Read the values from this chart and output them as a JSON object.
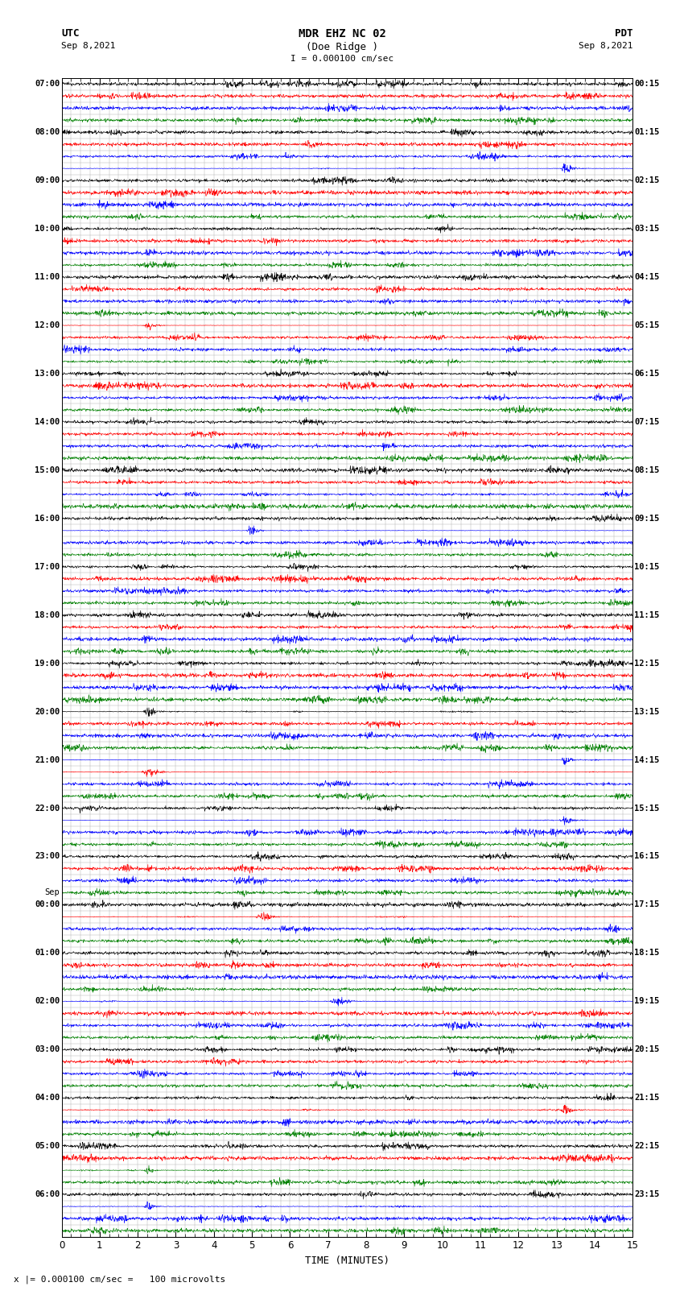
{
  "title_line1": "MDR EHZ NC 02",
  "title_line2": "(Doe Ridge )",
  "scale_label": "I = 0.000100 cm/sec",
  "utc_label": "UTC",
  "utc_date": "Sep 8,2021",
  "pdt_label": "PDT",
  "pdt_date": "Sep 8,2021",
  "bottom_label": "x |= 0.000100 cm/sec =   100 microvolts",
  "xlabel": "TIME (MINUTES)",
  "colors": [
    "black",
    "red",
    "blue",
    "green"
  ],
  "n_rows": 96,
  "n_samples": 1800,
  "x_min": 0,
  "x_max": 15,
  "bg_color": "#ffffff",
  "grid_color": "#aaaaaa",
  "figsize": [
    8.5,
    16.13
  ],
  "dpi": 100,
  "left_labels": [
    [
      0,
      "07:00"
    ],
    [
      4,
      "08:00"
    ],
    [
      8,
      "09:00"
    ],
    [
      12,
      "10:00"
    ],
    [
      16,
      "11:00"
    ],
    [
      20,
      "12:00"
    ],
    [
      24,
      "13:00"
    ],
    [
      28,
      "14:00"
    ],
    [
      32,
      "15:00"
    ],
    [
      36,
      "16:00"
    ],
    [
      40,
      "17:00"
    ],
    [
      44,
      "18:00"
    ],
    [
      48,
      "19:00"
    ],
    [
      52,
      "20:00"
    ],
    [
      56,
      "21:00"
    ],
    [
      60,
      "22:00"
    ],
    [
      64,
      "23:00"
    ],
    [
      67,
      "Sep"
    ],
    [
      68,
      "00:00"
    ],
    [
      72,
      "01:00"
    ],
    [
      76,
      "02:00"
    ],
    [
      80,
      "03:00"
    ],
    [
      84,
      "04:00"
    ],
    [
      88,
      "05:00"
    ],
    [
      92,
      "06:00"
    ]
  ],
  "right_labels": [
    [
      0,
      "00:15"
    ],
    [
      4,
      "01:15"
    ],
    [
      8,
      "02:15"
    ],
    [
      12,
      "03:15"
    ],
    [
      16,
      "04:15"
    ],
    [
      20,
      "05:15"
    ],
    [
      24,
      "06:15"
    ],
    [
      28,
      "07:15"
    ],
    [
      32,
      "08:15"
    ],
    [
      36,
      "09:15"
    ],
    [
      40,
      "10:15"
    ],
    [
      44,
      "11:15"
    ],
    [
      48,
      "12:15"
    ],
    [
      52,
      "13:15"
    ],
    [
      56,
      "14:15"
    ],
    [
      60,
      "15:15"
    ],
    [
      64,
      "16:15"
    ],
    [
      68,
      "17:15"
    ],
    [
      72,
      "18:15"
    ],
    [
      76,
      "19:15"
    ],
    [
      80,
      "20:15"
    ],
    [
      84,
      "21:15"
    ],
    [
      88,
      "22:15"
    ],
    [
      92,
      "23:15"
    ]
  ],
  "noise_levels": [
    0.06,
    0.07,
    0.06,
    0.06,
    0.07,
    0.07,
    0.06,
    0.07,
    0.25,
    0.08,
    0.07,
    0.06,
    0.07,
    0.06,
    0.07,
    0.07,
    0.06,
    0.07,
    0.06,
    0.07,
    0.09,
    0.07,
    0.06,
    0.07,
    0.06,
    0.07,
    0.07,
    0.06,
    0.07,
    0.07,
    0.07,
    0.06,
    0.12,
    0.13,
    0.14,
    0.14,
    0.13,
    0.13,
    0.07,
    0.06,
    0.22,
    0.22,
    0.22,
    0.22,
    0.2,
    0.22,
    0.24,
    0.22,
    0.22,
    0.2,
    0.22,
    0.2,
    0.22,
    0.22,
    0.22,
    0.22,
    0.25,
    0.35,
    0.35,
    0.35,
    0.35,
    0.35,
    0.35,
    0.35,
    0.35,
    0.35,
    0.35,
    0.35,
    0.35,
    0.35,
    0.3,
    0.28,
    0.28,
    0.28,
    0.28,
    0.28,
    0.25,
    0.2,
    0.18,
    0.18,
    0.18,
    0.18,
    0.18,
    0.18,
    0.18,
    0.15,
    0.15,
    0.15,
    0.15,
    0.15,
    0.18,
    0.2,
    0.2,
    0.18,
    0.15,
    0.14
  ],
  "special_events": {
    "7": [
      0.88,
      12.0,
      "blue"
    ],
    "20": [
      0.15,
      8.0,
      "red"
    ],
    "37": [
      0.33,
      10.0,
      "blue"
    ],
    "52": [
      0.15,
      7.0,
      "black"
    ],
    "56": [
      0.88,
      8.0,
      "blue"
    ],
    "57": [
      0.15,
      6.0,
      "red"
    ],
    "61": [
      0.88,
      9.0,
      "blue"
    ],
    "69": [
      0.35,
      6.0,
      "red"
    ],
    "76": [
      0.48,
      6.0,
      "blue"
    ],
    "85": [
      0.88,
      5.0,
      "red"
    ],
    "90": [
      0.15,
      5.0,
      "green"
    ],
    "93": [
      0.15,
      5.0,
      "blue"
    ]
  }
}
